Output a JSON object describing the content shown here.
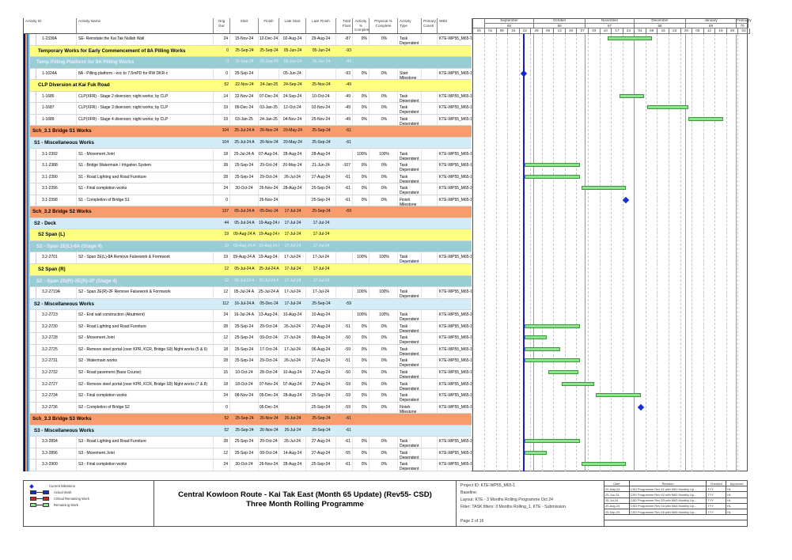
{
  "columns": {
    "activity_id": "Activity ID",
    "activity_name": "Activity Name",
    "orig_dur": "Orig Dur",
    "start": "Start",
    "finish": "Finish",
    "late_start": "Late Start",
    "late_finish": "Late Finish",
    "total_float": "Total Float",
    "activity_pct": "Activity % Complete",
    "physical_pct": "Physical % Complete",
    "activity_type": "Activity Type",
    "primary_constraint": "Primary Constr",
    "wbs": "WBS"
  },
  "timeline": {
    "months": [
      {
        "label": "September",
        "num": "65",
        "start": "2024-09-01",
        "end": "2024-10-01"
      },
      {
        "label": "October",
        "num": "66",
        "start": "2024-10-01",
        "end": "2024-11-01"
      },
      {
        "label": "November",
        "num": "67",
        "start": "2024-11-01",
        "end": "2024-12-01"
      },
      {
        "label": "December",
        "num": "68",
        "start": "2024-12-01",
        "end": "2025-01-01"
      },
      {
        "label": "January",
        "num": "69",
        "start": "2025-01-01",
        "end": "2025-02-01"
      },
      {
        "label": "February",
        "num": "70",
        "start": "2025-02-01",
        "end": "2025-02-08"
      }
    ],
    "weeks": [
      "25",
      "01",
      "08",
      "15",
      "22",
      "29",
      "06",
      "13",
      "20",
      "27",
      "03",
      "10",
      "17",
      "24",
      "01",
      "08",
      "15",
      "22",
      "29",
      "05",
      "12",
      "19",
      "26",
      "02"
    ],
    "week_start": "2024-08-25",
    "data_date": "2024-09-25",
    "colors": {
      "remaining": "#8fe38f",
      "milestone": "#1a2fcf",
      "data_date": "#1c1cc8"
    }
  },
  "rows": [
    {
      "kind": "task",
      "id": "1-2339A",
      "name": "SE- Reinstate the Kai Tak Nullah Wall",
      "dur": "24",
      "start": "15-Nov-24",
      "finish": "12-Dec-24",
      "ls": "02-Aug-24",
      "lf": "29-Aug-24",
      "tf": "-87",
      "act": "0%",
      "phys": "0%",
      "type": "Task Dependent",
      "wbs": "KTE-WP55_M65-1",
      "bar": [
        "2024-11-15",
        "2024-12-12"
      ]
    },
    {
      "kind": "yellow",
      "name": "Temporary Works for Early Commencement of 8A Pilling Works",
      "dur": "0",
      "start": "25-Sep-24",
      "finish": "25-Sep-24",
      "ls": "05-Jun-24",
      "lf": "05-Jun-24",
      "tf": "-93"
    },
    {
      "kind": "teal",
      "name": "Temp Pilling Platform for 8A Pilling Works",
      "dur": "0",
      "start": "25-Sep-24",
      "finish": "25-Sep-24",
      "ls": "05-Jun-24",
      "lf": "05-Jun-24",
      "tf": "-93"
    },
    {
      "kind": "task",
      "id": "1-1624A",
      "name": "8A - Pilling platform - exc to 7.5mPD for RW DKR-c",
      "dur": "0",
      "start": "25-Sep-24",
      "finish": "",
      "ls": "05-Jun-24",
      "lf": "",
      "tf": "-93",
      "act": "0%",
      "phys": "0%",
      "type": "Start Milestone",
      "wbs": "KTE-WP55_M65-1",
      "ms": "2024-09-25"
    },
    {
      "kind": "yellow",
      "name": "CLP Diversion at Kai Fuk Road",
      "dur": "52",
      "start": "22-Nov-24",
      "finish": "24-Jan-25",
      "ls": "24-Sep-24",
      "lf": "25-Nov-24",
      "tf": "-49"
    },
    {
      "kind": "task",
      "id": "1-1685",
      "name": "CLP(XFR) - Stage 2 diversion; night works; by CLP",
      "dur": "14",
      "start": "22-Nov-24",
      "finish": "07-Dec-24",
      "ls": "24-Sep-24",
      "lf": "10-Oct-24",
      "tf": "-49",
      "act": "0%",
      "phys": "0%",
      "type": "Task Dependent",
      "wbs": "KTE-WP55_M65-1",
      "bar": [
        "2024-11-22",
        "2024-12-07"
      ]
    },
    {
      "kind": "task",
      "id": "1-1687",
      "name": "CLP(XFR) - Stage 3 diversion; night works; by CLP",
      "dur": "19",
      "start": "09-Dec-24",
      "finish": "03-Jan-25",
      "ls": "12-Oct-24",
      "lf": "02-Nov-24",
      "tf": "-49",
      "act": "0%",
      "phys": "0%",
      "type": "Task Dependent",
      "wbs": "KTE-WP55_M65-1",
      "bar": [
        "2024-12-09",
        "2025-01-03"
      ]
    },
    {
      "kind": "task",
      "id": "1-1689",
      "name": "CLP(XFR) - Stage 4 diversion; night works; by CLP",
      "dur": "19",
      "start": "03-Jan-25",
      "finish": "24-Jan-25",
      "ls": "04-Nov-24",
      "lf": "25-Nov-24",
      "tf": "-49",
      "act": "0%",
      "phys": "0%",
      "type": "Task Dependent",
      "wbs": "KTE-WP55_M65-1",
      "bar": [
        "2025-01-03",
        "2025-01-24"
      ]
    },
    {
      "kind": "orange",
      "name": "Sch_3.1 Bridge S1 Works",
      "dur": "104",
      "start": "25-Jul-24 A",
      "finish": "26-Nov-24",
      "ls": "20-May-24",
      "lf": "25-Sep-24",
      "tf": "-61"
    },
    {
      "kind": "blue",
      "name": "S1 - Miscellaneous Works",
      "dur": "104",
      "start": "25-Jul-24 A",
      "finish": "26-Nov-24",
      "ls": "20-May-24",
      "lf": "25-Sep-24",
      "tf": "-61"
    },
    {
      "kind": "task",
      "id": "3.1-2392",
      "name": "S1 - Movement Joint",
      "dur": "18",
      "start": "25-Jul-24 A",
      "finish": "07-Aug-24 A",
      "ls": "28-Aug-24",
      "lf": "28-Aug-24",
      "tf": "",
      "act": "100%",
      "phys": "100%",
      "type": "Task Dependent",
      "wbs": "KTE-WP55_M65-1"
    },
    {
      "kind": "task",
      "id": "3.1-2388",
      "name": "S1 - Bridge Watermain / Irrigation System",
      "dur": "28",
      "start": "25-Sep-24",
      "finish": "29-Oct-24",
      "ls": "20-May-24",
      "lf": "21-Jun-24",
      "tf": "-107",
      "act": "0%",
      "phys": "0%",
      "type": "Task Dependent",
      "wbs": "KTE-WP55_M65-1",
      "bar": [
        "2024-09-25",
        "2024-10-29"
      ]
    },
    {
      "kind": "task",
      "id": "3.1-2390",
      "name": "S1 - Road Lighting and Road Furniture",
      "dur": "28",
      "start": "25-Sep-24",
      "finish": "29-Oct-24",
      "ls": "26-Jul-24",
      "lf": "27-Aug-24",
      "tf": "-61",
      "act": "0%",
      "phys": "0%",
      "type": "Task Dependent",
      "wbs": "KTE-WP55_M65-1",
      "bar": [
        "2024-09-25",
        "2024-10-29"
      ]
    },
    {
      "kind": "task",
      "id": "3.1-2396",
      "name": "S1 - Final completion works",
      "dur": "24",
      "start": "30-Oct-24",
      "finish": "26-Nov-24",
      "ls": "28-Aug-24",
      "lf": "25-Sep-24",
      "tf": "-61",
      "act": "0%",
      "phys": "0%",
      "type": "Task Dependent",
      "wbs": "KTE-WP55_M65-1",
      "bar": [
        "2024-10-30",
        "2024-11-26"
      ]
    },
    {
      "kind": "task",
      "id": "3.1-2398",
      "name": "S1 - Completion of Bridge S1",
      "dur": "0",
      "start": "",
      "finish": "26-Nov-24",
      "ls": "",
      "lf": "25-Sep-24",
      "tf": "-61",
      "act": "0%",
      "phys": "0%",
      "type": "Finish Milestone",
      "wbs": "KTE-WP55_M65-1",
      "ms": "2024-11-26"
    },
    {
      "kind": "orange",
      "name": "Sch_3.2 Bridge S2 Works",
      "dur": "137",
      "start": "05-Jul-24 A",
      "finish": "05-Dec-24",
      "ls": "17-Jul-24",
      "lf": "25-Sep-24",
      "tf": "-69"
    },
    {
      "kind": "blue",
      "name": "S2 - Deck",
      "dur": "44",
      "start": "05-Jul-24 A",
      "finish": "19-Aug-24 A",
      "ls": "17-Jul-24",
      "lf": "17-Jul-24",
      "tf": ""
    },
    {
      "kind": "yellow",
      "name": "S2 Span (L)",
      "dur": "19",
      "start": "09-Aug-24 A",
      "finish": "19-Aug-24 A",
      "ls": "17-Jul-24",
      "lf": "17-Jul-24",
      "tf": ""
    },
    {
      "kind": "teal",
      "name": "S2 - Span 2E(L)-8A (Stage 4)",
      "dur": "19",
      "start": "09-Aug-24 A",
      "finish": "19-Aug-24 A",
      "ls": "17-Jul-24",
      "lf": "17-Jul-24",
      "tf": ""
    },
    {
      "kind": "task",
      "id": "3.2-2701",
      "name": "S2 - Span 2E(L)-8A Remove Falsework & Formwork",
      "dur": "19",
      "start": "09-Aug-24 A",
      "finish": "19-Aug-24 A",
      "ls": "17-Jul-24",
      "lf": "17-Jul-24",
      "tf": "",
      "act": "100%",
      "phys": "100%",
      "type": "Task Dependent",
      "wbs": "KTE-WP55_M65-1"
    },
    {
      "kind": "yellow",
      "name": "S2 Span (R)",
      "dur": "12",
      "start": "05-Jul-24 A",
      "finish": "25-Jul-24 A",
      "ls": "17-Jul-24",
      "lf": "17-Jul-24",
      "tf": ""
    },
    {
      "kind": "teal",
      "name": "S2 - Span 2D(R)-2E(R)-2F (Stage 4)",
      "dur": "12",
      "start": "05-Jul-24 A",
      "finish": "25-Jul-24 A",
      "ls": "17-Jul-24",
      "lf": "17-Jul-24",
      "tf": ""
    },
    {
      "kind": "task",
      "id": "3.2-2719A",
      "name": "S2 - Span 2E(R)-2F Remove Falsework & Formwork",
      "dur": "12",
      "start": "05-Jul-24 A",
      "finish": "25-Jul-24 A",
      "ls": "17-Jul-24",
      "lf": "17-Jul-24",
      "tf": "",
      "act": "100%",
      "phys": "100%",
      "type": "Task Dependent",
      "wbs": "KTE-WP55_M65-1"
    },
    {
      "kind": "blue",
      "name": "S2 - Miscellaneous Works",
      "dur": "112",
      "start": "16-Jul-24 A",
      "finish": "05-Dec-24",
      "ls": "17-Jul-24",
      "lf": "25-Sep-24",
      "tf": "-59"
    },
    {
      "kind": "task",
      "id": "3.2-2723",
      "name": "S2 - End wall construction (Abutment)",
      "dur": "24",
      "start": "16-Jul-24 A",
      "finish": "13-Aug-24 A",
      "ls": "10-Aug-24",
      "lf": "10-Aug-24",
      "tf": "",
      "act": "100%",
      "phys": "100%",
      "type": "Task Dependent",
      "wbs": "KTE-WP55_M65-1"
    },
    {
      "kind": "task",
      "id": "3.2-2730",
      "name": "S2 - Road Lighting and Road Furniture",
      "dur": "28",
      "start": "25-Sep-24",
      "finish": "29-Oct-24",
      "ls": "26-Jul-24",
      "lf": "27-Aug-24",
      "tf": "-51",
      "act": "0%",
      "phys": "0%",
      "type": "Task Dependent",
      "wbs": "KTE-WP55_M65-1",
      "bar": [
        "2024-09-25",
        "2024-10-29"
      ]
    },
    {
      "kind": "task",
      "id": "3.2-2728",
      "name": "S2 - Movement Joint",
      "dur": "12",
      "start": "25-Sep-24",
      "finish": "09-Oct-24",
      "ls": "27-Jul-24",
      "lf": "09-Aug-24",
      "tf": "-50",
      "act": "0%",
      "phys": "0%",
      "type": "Task Dependent",
      "wbs": "KTE-WP55_M65-1",
      "bar": [
        "2024-09-25",
        "2024-10-09"
      ]
    },
    {
      "kind": "task",
      "id": "3.2-2725",
      "name": "S2 - Remove steel portal (over KPR, KCR, Bridge S9) Night works (5 & 6)",
      "dur": "18",
      "start": "25-Sep-24",
      "finish": "17-Oct-24",
      "ls": "17-Jul-24",
      "lf": "06-Aug-24",
      "tf": "-59",
      "act": "0%",
      "phys": "0%",
      "type": "Task Dependent",
      "wbs": "KTE-WP55_M65-1",
      "bar": [
        "2024-09-25",
        "2024-10-17"
      ]
    },
    {
      "kind": "task",
      "id": "3.2-2731",
      "name": "S2 - Watermain works",
      "dur": "28",
      "start": "25-Sep-24",
      "finish": "29-Oct-24",
      "ls": "26-Jul-24",
      "lf": "27-Aug-24",
      "tf": "-51",
      "act": "0%",
      "phys": "0%",
      "type": "Task Dependent",
      "wbs": "KTE-WP55_M65-1",
      "bar": [
        "2024-09-25",
        "2024-10-29"
      ]
    },
    {
      "kind": "task",
      "id": "3.2-2732",
      "name": "S2 - Road pavement (Base Course)",
      "dur": "15",
      "start": "10-Oct-24",
      "finish": "28-Oct-24",
      "ls": "10-Aug-24",
      "lf": "27-Aug-24",
      "tf": "-50",
      "act": "0%",
      "phys": "0%",
      "type": "Task Dependent",
      "wbs": "KTE-WP55_M65-1",
      "bar": [
        "2024-10-10",
        "2024-10-28"
      ]
    },
    {
      "kind": "task",
      "id": "3.2-2727",
      "name": "S2 - Remove steel portal (over KPR, KCR, Bridge S9) Night works (7 & 8)",
      "dur": "18",
      "start": "18-Oct-24",
      "finish": "07-Nov-24",
      "ls": "07-Aug-24",
      "lf": "27-Aug-24",
      "tf": "-59",
      "act": "0%",
      "phys": "0%",
      "type": "Task Dependent",
      "wbs": "KTE-WP55_M65-1",
      "bar": [
        "2024-10-18",
        "2024-11-07"
      ]
    },
    {
      "kind": "task",
      "id": "3.2-2734",
      "name": "S2 - Final completion works",
      "dur": "24",
      "start": "08-Nov-24",
      "finish": "05-Dec-24",
      "ls": "28-Aug-24",
      "lf": "25-Sep-24",
      "tf": "-59",
      "act": "0%",
      "phys": "0%",
      "type": "Task Dependent",
      "wbs": "KTE-WP55_M65-1",
      "bar": [
        "2024-11-08",
        "2024-12-05"
      ]
    },
    {
      "kind": "task",
      "id": "3.2-2736",
      "name": "S2 - Completion of Bridge S2",
      "dur": "0",
      "start": "",
      "finish": "05-Dec-24",
      "ls": "",
      "lf": "25-Sep-24",
      "tf": "-59",
      "act": "0%",
      "phys": "0%",
      "type": "Finish Milestone",
      "wbs": "KTE-WP55_M65-1",
      "ms": "2024-12-05"
    },
    {
      "kind": "orange",
      "name": "Sch_3.3 Bridge S3 Works",
      "dur": "52",
      "start": "25-Sep-24",
      "finish": "26-Nov-24",
      "ls": "26-Jul-24",
      "lf": "25-Sep-24",
      "tf": "-61"
    },
    {
      "kind": "blue",
      "name": "S3 - Miscellaneous Works",
      "dur": "52",
      "start": "25-Sep-24",
      "finish": "26-Nov-24",
      "ls": "26-Jul-24",
      "lf": "25-Sep-24",
      "tf": "-61"
    },
    {
      "kind": "task",
      "id": "3.3-2894",
      "name": "S3 - Road Lighting and Road Furniture",
      "dur": "28",
      "start": "25-Sep-24",
      "finish": "29-Oct-24",
      "ls": "26-Jul-24",
      "lf": "27-Aug-24",
      "tf": "-61",
      "act": "0%",
      "phys": "0%",
      "type": "Task Dependent",
      "wbs": "KTE-WP55_M65-1",
      "bar": [
        "2024-09-25",
        "2024-10-29"
      ]
    },
    {
      "kind": "task",
      "id": "3.3-2896",
      "name": "S3 - Movement Joint",
      "dur": "12",
      "start": "25-Sep-24",
      "finish": "09-Oct-24",
      "ls": "14-Aug-24",
      "lf": "27-Aug-24",
      "tf": "-55",
      "act": "0%",
      "phys": "0%",
      "type": "Task Dependent",
      "wbs": "KTE-WP55_M65-1",
      "bar": [
        "2024-09-25",
        "2024-10-09"
      ]
    },
    {
      "kind": "task",
      "id": "3.3-2900",
      "name": "S3 - Final completion works",
      "dur": "24",
      "start": "30-Oct-24",
      "finish": "26-Nov-24",
      "ls": "28-Aug-24",
      "lf": "25-Sep-24",
      "tf": "-61",
      "act": "0%",
      "phys": "0%",
      "type": "Task Dependent",
      "wbs": "KTE-WP55_M65-1",
      "bar": [
        "2024-10-30",
        "2024-11-26"
      ]
    }
  ],
  "legend": {
    "current_milestone": "Current Milestone",
    "actual_work": "Actual Work",
    "critical_remaining": "Critical Remaining Work",
    "remaining_work": "Remaining Work",
    "colors": {
      "actual": "#1030d0",
      "critical": "#e02020",
      "remaining": "#8fe38f"
    }
  },
  "footer": {
    "title_line1": "Central Kowloon Route - Kai Tak East (Month 65 Update) (Rev55- CSD)",
    "title_line2": "Three Month Rolling Programme",
    "project_id": "Project ID: KTE-WP55_M65-1",
    "baseline": "Baseline:",
    "layout": "Layout: KTE - 3 Months Rolling Programme Oct 24",
    "filter": "Filter: TASK filters: 3 Months Rolling_1, KTE - Submission.",
    "page": "Page 2 of 16"
  },
  "revisions": {
    "headers": [
      "Date",
      "Revision",
      "Checked",
      "Approved"
    ],
    "rows": [
      [
        "20-May-24",
        "CSD Programme Rev 51 with M61 Monthly Up...",
        "TYY",
        "HL"
      ],
      [
        "25-Jun-24",
        "CSD Programme Rev 52 with M62 Monthly Up...",
        "TYY",
        "HL"
      ],
      [
        "25-Jul-24",
        "CSD Programme Rev 53 with M63 Monthly Up...",
        "TYY",
        "HL"
      ],
      [
        "20-Aug-24",
        "CSD Programme Rev 54 with M64 Monthly Up...",
        "TYY",
        "HL"
      ],
      [
        "25-Sep-24",
        "CSD Programme Rev 55 with M65 Monthly Up...",
        "TYY",
        "HL"
      ]
    ]
  }
}
